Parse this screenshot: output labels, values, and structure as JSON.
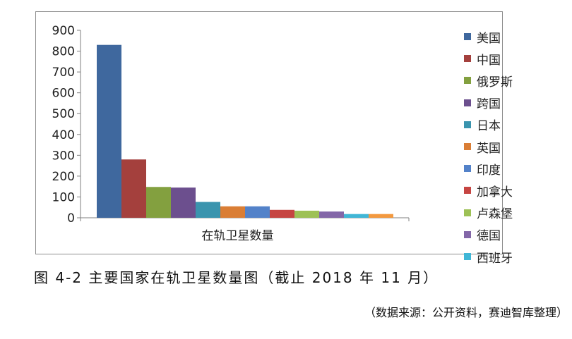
{
  "chart_data": {
    "type": "bar",
    "categories": [
      "在轨卫星数量"
    ],
    "series": [
      {
        "name": "美国",
        "values": [
          830
        ],
        "color": "#3F689E"
      },
      {
        "name": "中国",
        "values": [
          280
        ],
        "color": "#A4403D"
      },
      {
        "name": "俄罗斯",
        "values": [
          148
        ],
        "color": "#83A03F"
      },
      {
        "name": "跨国",
        "values": [
          145
        ],
        "color": "#6C4F8E"
      },
      {
        "name": "日本",
        "values": [
          76
        ],
        "color": "#3A94AE"
      },
      {
        "name": "英国",
        "values": [
          55
        ],
        "color": "#DA7E35"
      },
      {
        "name": "印度",
        "values": [
          55
        ],
        "color": "#5382C9"
      },
      {
        "name": "加拿大",
        "values": [
          38
        ],
        "color": "#C64542"
      },
      {
        "name": "卢森堡",
        "values": [
          34
        ],
        "color": "#9DC156"
      },
      {
        "name": "德国",
        "values": [
          30
        ],
        "color": "#8367A8"
      },
      {
        "name": "西班牙",
        "values": [
          18
        ],
        "color": "#40B6D6"
      },
      {
        "name": "",
        "values": [
          18
        ],
        "color": "#F3993F"
      }
    ],
    "yticks": [
      "0",
      "100",
      "200",
      "300",
      "400",
      "500",
      "600",
      "700",
      "800",
      "900"
    ],
    "ylim": [
      0,
      900
    ],
    "grid": false,
    "legend": "right"
  },
  "caption": "图 4-2 主要国家在轨卫星数量图（截止 2018 年 11 月）",
  "source": "（数据来源：公开资料，赛迪智库整理）"
}
